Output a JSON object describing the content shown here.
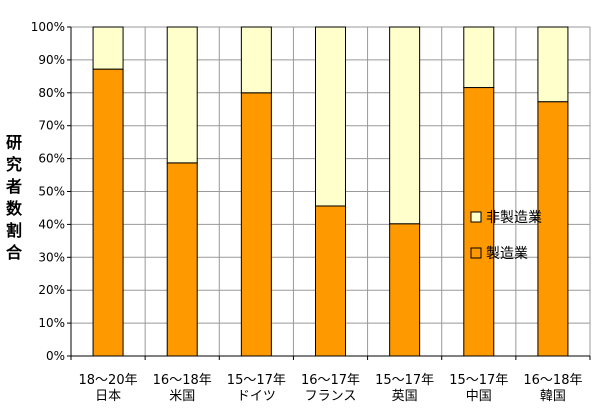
{
  "chart_data": {
    "type": "bar",
    "stacked": true,
    "title": "",
    "ylabel": "研究者数割合",
    "ylim": [
      0,
      100
    ],
    "yticks": [
      "0%",
      "10%",
      "20%",
      "30%",
      "40%",
      "50%",
      "60%",
      "70%",
      "80%",
      "90%",
      "100%"
    ],
    "grid": true,
    "legend": "right",
    "categories": [
      [
        "18～20年",
        "日本"
      ],
      [
        "16～18年",
        "米国"
      ],
      [
        "15～17年",
        "ドイツ"
      ],
      [
        "16～17年",
        "フランス"
      ],
      [
        "15～17年",
        "英国"
      ],
      [
        "15～17年",
        "中国"
      ],
      [
        "16～18年",
        "韓国"
      ]
    ],
    "series": [
      {
        "name": "製造業",
        "color": "#FF9900",
        "values": [
          87.2,
          58.7,
          80.0,
          45.6,
          40.2,
          81.6,
          77.3
        ]
      },
      {
        "name": "非製造業",
        "color": "#FFFFCC",
        "values": [
          12.8,
          41.3,
          20.0,
          54.4,
          59.8,
          18.4,
          22.7
        ]
      }
    ],
    "legend_order": [
      "非製造業",
      "製造業"
    ]
  }
}
